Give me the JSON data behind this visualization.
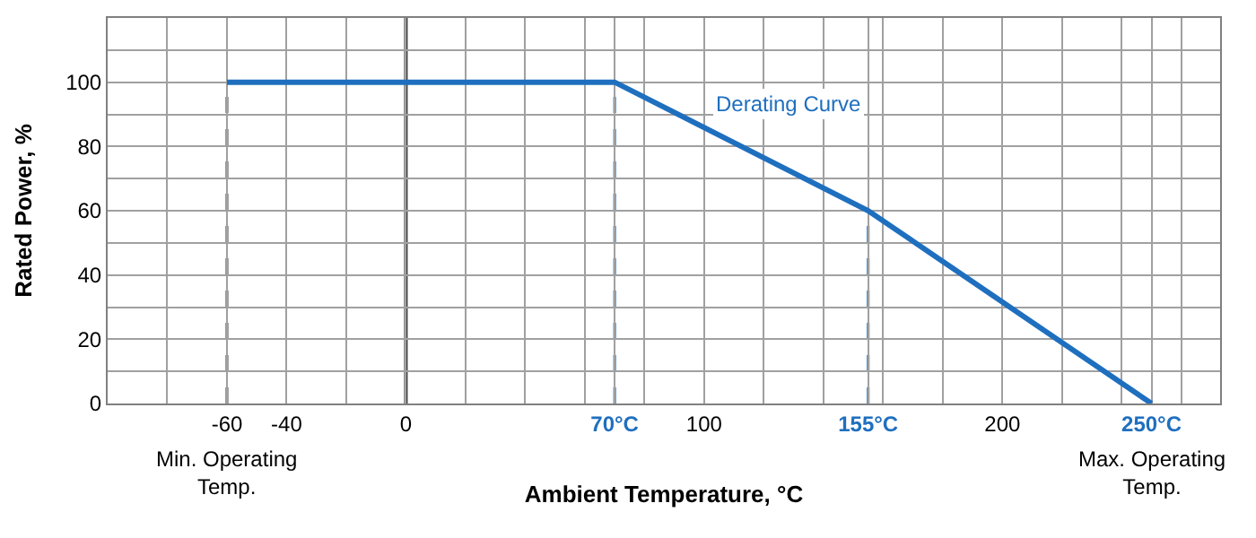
{
  "chart_data": {
    "type": "line",
    "xlabel": "Ambient Temperature, °C",
    "ylabel": "Rated Power, %",
    "x": [
      -60,
      70,
      155,
      250
    ],
    "series": [
      {
        "color": "#1f6fbf",
        "values": [
          100,
          100,
          60,
          0
        ]
      }
    ],
    "xlim": [
      -100,
      273
    ],
    "ylim": [
      0,
      120
    ],
    "xticks": [
      {
        "value": -100,
        "label": null
      },
      {
        "value": -80,
        "label": null
      },
      -60,
      -40,
      {
        "value": -20,
        "label": null
      },
      0,
      {
        "value": 20,
        "label": null
      },
      {
        "value": 40,
        "label": null
      },
      {
        "value": 60,
        "label": null
      },
      {
        "value": 70,
        "label": "70°C"
      },
      {
        "value": 80,
        "label": null
      },
      100,
      {
        "value": 120,
        "label": null
      },
      {
        "value": 140,
        "label": null
      },
      {
        "value": 155,
        "label": "155°C"
      },
      {
        "value": 160,
        "label": null
      },
      {
        "value": 180,
        "label": null
      },
      200,
      {
        "value": 220,
        "label": null
      },
      {
        "value": 240,
        "label": null
      },
      {
        "value": 250,
        "label": "250°C"
      },
      {
        "value": 260,
        "label": null
      }
    ],
    "yticks": [
      0,
      {
        "value": 10,
        "label": null
      },
      20,
      {
        "value": 30,
        "label": null
      },
      40,
      {
        "value": 50,
        "label": null
      },
      60,
      {
        "value": 70,
        "label": null
      },
      80,
      {
        "value": 90,
        "label": null
      },
      100,
      {
        "value": 110,
        "label": null
      }
    ],
    "grid": true,
    "marker": "none",
    "line_style": "solid",
    "ref_lines": [
      {
        "axis": "x",
        "value": 0,
        "color": "#404040",
        "line_style": "solid"
      },
      {
        "axis": "x",
        "value": -60,
        "color": "#404040",
        "line_style": "dashed"
      },
      {
        "axis": "x",
        "value": 70,
        "color": "#1f6fbf",
        "line_style": "dashed"
      },
      {
        "axis": "x",
        "value": 155,
        "color": "#1f6fbf",
        "line_style": "dashed"
      }
    ],
    "annotations": [
      "Derating Curve",
      {
        "text": "Min. Operating Temp.",
        "x": -60,
        "y": 0
      },
      {
        "text": "Max. Operating Temp.",
        "x": 250,
        "y": 0
      }
    ]
  }
}
